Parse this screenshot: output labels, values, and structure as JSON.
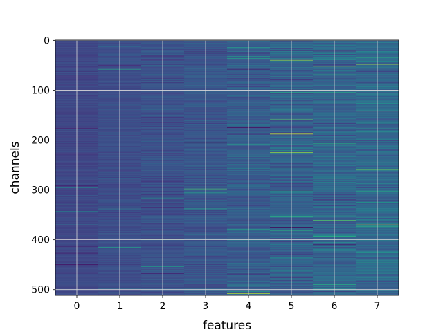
{
  "chart_data": {
    "type": "heatmap",
    "title": "",
    "xlabel": "features",
    "ylabel": "channels",
    "x_categories": [
      "0",
      "1",
      "2",
      "3",
      "4",
      "5",
      "6",
      "7"
    ],
    "y_ticks": [
      0,
      100,
      200,
      300,
      400,
      500
    ],
    "y_tick_labels": [
      "0",
      "100",
      "200",
      "300",
      "400",
      "500"
    ],
    "ylim": [
      511.5,
      -0.5
    ],
    "n_rows": 512,
    "n_cols": 8,
    "colormap": "viridis",
    "grid": true,
    "value_range": [
      0,
      1
    ],
    "column_mean_estimate": [
      0.22,
      0.24,
      0.25,
      0.27,
      0.29,
      0.31,
      0.33,
      0.34
    ],
    "column_spread_estimate": [
      0.03,
      0.04,
      0.06,
      0.07,
      0.09,
      0.11,
      0.12,
      0.13
    ],
    "notable_bright_bands": [
      {
        "feature": 1,
        "channel": 58,
        "value": 0.6
      },
      {
        "feature": 2,
        "channel": 400,
        "value": 0.7
      },
      {
        "feature": 3,
        "channel": 298,
        "value": 0.7
      },
      {
        "feature": 4,
        "channel": 508,
        "value": 0.9
      },
      {
        "feature": 5,
        "channel": 40,
        "value": 0.85
      },
      {
        "feature": 5,
        "channel": 188,
        "value": 0.95
      },
      {
        "feature": 5,
        "channel": 225,
        "value": 0.85
      },
      {
        "feature": 5,
        "channel": 290,
        "value": 0.9
      },
      {
        "feature": 6,
        "channel": 52,
        "value": 0.85
      },
      {
        "feature": 6,
        "channel": 232,
        "value": 0.9
      },
      {
        "feature": 6,
        "channel": 425,
        "value": 0.9
      },
      {
        "feature": 7,
        "channel": 48,
        "value": 0.95
      },
      {
        "feature": 7,
        "channel": 142,
        "value": 0.9
      },
      {
        "feature": 7,
        "channel": 260,
        "value": 0.75
      },
      {
        "feature": 7,
        "channel": 370,
        "value": 0.8
      }
    ],
    "notable_dark_bands": [
      {
        "feature": 4,
        "channel": 175,
        "value": 0.02
      },
      {
        "feature": 5,
        "channel": 375,
        "value": 0.0
      },
      {
        "feature": 6,
        "channel": 410,
        "value": 0.05
      },
      {
        "feature": 0,
        "channel": 450,
        "value": 0.05
      }
    ]
  }
}
